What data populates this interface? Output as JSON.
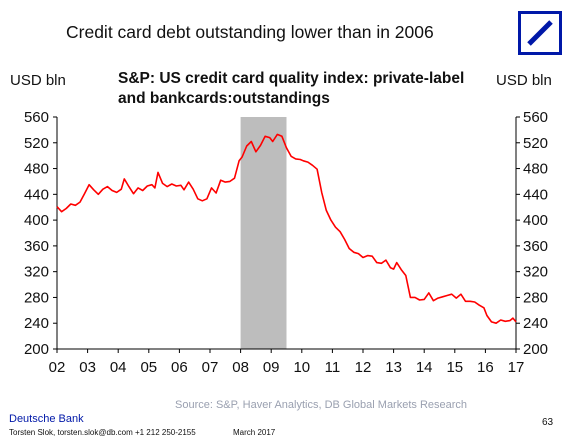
{
  "slide": {
    "title": "Credit card debt outstanding lower than in 2006"
  },
  "chart_data": {
    "type": "line",
    "title": "S&P: US credit card quality index: private-label and bankcards:outstandings",
    "title_lines": [
      "S&P: US credit card quality index: private-label",
      "and bankcards:outstandings"
    ],
    "ylabel_left": "USD bln",
    "ylabel_right": "USD bln",
    "ylim": [
      200,
      560
    ],
    "yticks": [
      200,
      240,
      280,
      320,
      360,
      400,
      440,
      480,
      520,
      560
    ],
    "xlim": [
      2002,
      2017
    ],
    "xticks": [
      2002,
      2003,
      2004,
      2005,
      2006,
      2007,
      2008,
      2009,
      2010,
      2011,
      2012,
      2013,
      2014,
      2015,
      2016,
      2017
    ],
    "xtick_labels": [
      "02",
      "03",
      "04",
      "05",
      "06",
      "07",
      "08",
      "09",
      "10",
      "11",
      "12",
      "13",
      "14",
      "15",
      "16",
      "17"
    ],
    "recession_shading": {
      "start": 2008.0,
      "end": 2009.5,
      "color": "#bdbdbd"
    },
    "line_color": "#ff0000",
    "series": [
      {
        "x": [
          2002.0,
          2002.15,
          2002.3,
          2002.45,
          2002.6,
          2002.75,
          2002.9,
          2003.05,
          2003.2,
          2003.35,
          2003.5,
          2003.65,
          2003.8,
          2003.95,
          2004.1,
          2004.2,
          2004.35,
          2004.5,
          2004.65,
          2004.8,
          2004.95,
          2005.1,
          2005.2,
          2005.3,
          2005.45,
          2005.6,
          2005.75,
          2005.9,
          2006.05,
          2006.15,
          2006.3,
          2006.45,
          2006.6,
          2006.75,
          2006.9,
          2007.05,
          2007.2,
          2007.35,
          2007.5,
          2007.65,
          2007.8,
          2007.95,
          2008.05,
          2008.2,
          2008.35,
          2008.5,
          2008.65,
          2008.8,
          2008.95,
          2009.05,
          2009.2,
          2009.35,
          2009.5,
          2009.65,
          2009.8,
          2009.95,
          2010.05,
          2010.2,
          2010.35,
          2010.5,
          2010.65,
          2010.8,
          2010.95,
          2011.1,
          2011.25,
          2011.4,
          2011.55,
          2011.7,
          2011.85,
          2012.0,
          2012.15,
          2012.3,
          2012.45,
          2012.6,
          2012.75,
          2012.9,
          2013.0,
          2013.1,
          2013.25,
          2013.4,
          2013.55,
          2013.7,
          2013.85,
          2014.0,
          2014.15,
          2014.3,
          2014.45,
          2014.6,
          2014.75,
          2014.9,
          2015.05,
          2015.2,
          2015.35,
          2015.5,
          2015.65,
          2015.8,
          2015.95,
          2016.05,
          2016.2,
          2016.35,
          2016.5,
          2016.65,
          2016.8,
          2016.9,
          2017.0
        ],
        "y": [
          421,
          413,
          418,
          425,
          423,
          428,
          441,
          455,
          447,
          440,
          448,
          452,
          446,
          443,
          448,
          464,
          452,
          441,
          450,
          446,
          453,
          455,
          450,
          474,
          457,
          452,
          456,
          453,
          454,
          447,
          459,
          448,
          433,
          430,
          433,
          450,
          442,
          462,
          459,
          460,
          465,
          492,
          498,
          515,
          522,
          506,
          516,
          530,
          528,
          522,
          533,
          530,
          512,
          499,
          495,
          494,
          492,
          490,
          485,
          479,
          443,
          415,
          400,
          389,
          382,
          370,
          356,
          350,
          348,
          342,
          345,
          344,
          334,
          333,
          338,
          326,
          324,
          334,
          323,
          314,
          280,
          280,
          276,
          277,
          287,
          275,
          279,
          281,
          283,
          285,
          279,
          285,
          274,
          274,
          273,
          268,
          264,
          252,
          242,
          240,
          245,
          243,
          244,
          248,
          242
        ]
      }
    ],
    "source": "Source: S&P, Haver Analytics, DB Global Markets Research"
  },
  "footer": {
    "bank_name": "Deutsche Bank",
    "contact": "Torsten Slok, torsten.slok@db.com +1 212 250-2155",
    "date": "March 2017",
    "page_number": "63"
  },
  "colors": {
    "brand_blue": "#0018a8",
    "axis": "#000000"
  },
  "icons": {
    "logo": "deutsche-bank-logo"
  }
}
